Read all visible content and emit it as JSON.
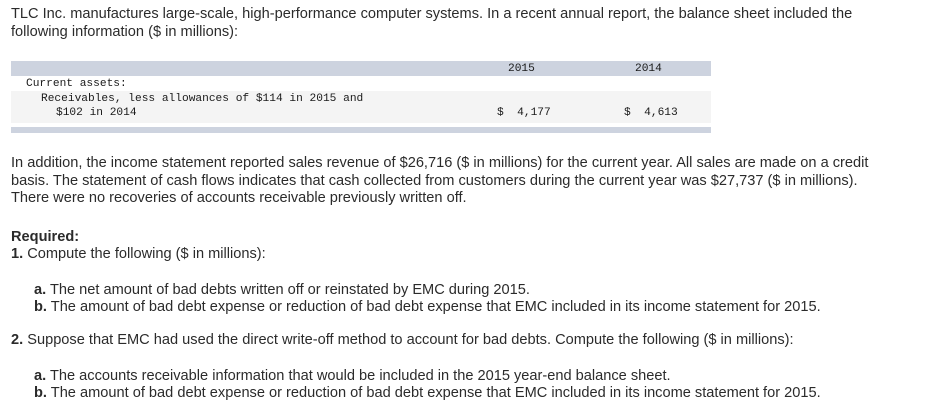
{
  "intro": {
    "line1": "TLC Inc. manufactures large-scale, high-performance computer systems. In a recent annual report, the balance sheet included the",
    "line2": "following information ($ in millions):"
  },
  "table": {
    "columns": [
      "2015",
      "2014"
    ],
    "section_label": "Current assets:",
    "rows": [
      {
        "label_line1": "Receivables, less allowances of $114 in 2015 and",
        "label_line2": "$102 in 2014",
        "value_2015": "$  4,177",
        "value_2014": "$  4,613"
      }
    ]
  },
  "addition": {
    "line1": "In addition, the income statement reported sales revenue of $26,716 ($ in millions) for the current year. All sales are made on a credit",
    "line2": "basis. The statement of cash flows indicates that cash collected from customers during the current year was $27,737 ($ in millions).",
    "line3": "There were no recoveries of accounts receivable previously written off."
  },
  "required": {
    "heading": "Required:",
    "q1": {
      "number": "1.",
      "text": " Compute the following ($ in millions):",
      "items": [
        {
          "letter": "a.",
          "text": " The net amount of bad debts written off or reinstated by EMC during 2015."
        },
        {
          "letter": "b.",
          "text": " The amount of bad debt expense or reduction of bad debt expense that EMC included in its income statement for 2015."
        }
      ]
    },
    "q2": {
      "number": "2.",
      "text": " Suppose that EMC had used the direct write-off method to account for bad debts. Compute the following ($ in millions):",
      "items": [
        {
          "letter": "a.",
          "text": " The accounts receivable information that would be included in the 2015 year-end balance sheet."
        },
        {
          "letter": "b.",
          "text": " The amount of bad debt expense or reduction of bad debt expense that EMC included in its income statement for 2015."
        }
      ]
    }
  },
  "colors": {
    "text": "#2b2b2b",
    "table_header_band": "#cdd3df",
    "table_row_shade": "#f4f4f4"
  }
}
